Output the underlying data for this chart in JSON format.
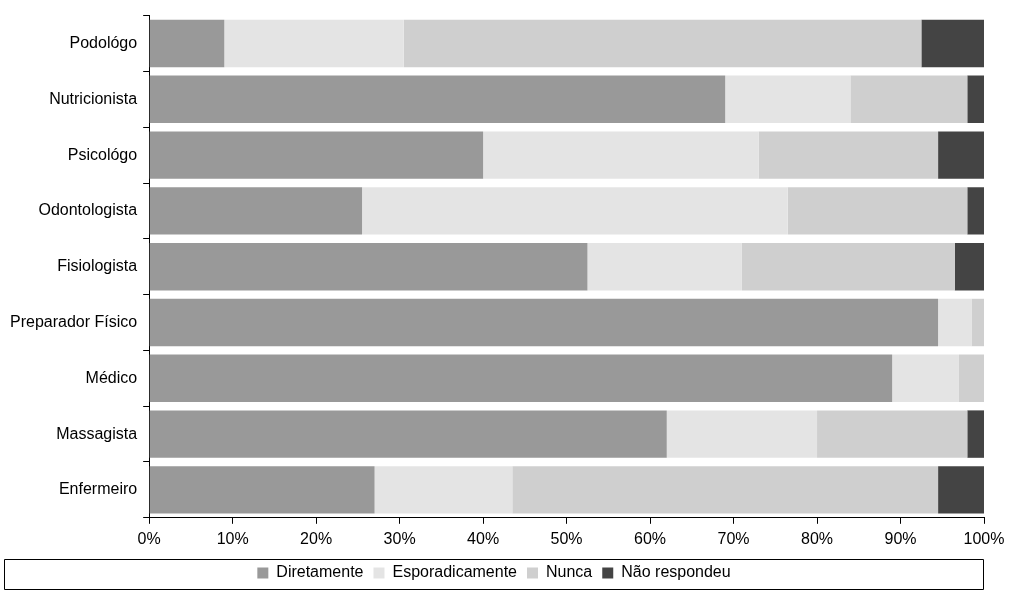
{
  "chart_data": {
    "type": "bar",
    "orientation": "horizontal",
    "stacked": true,
    "categories": [
      "Podológo",
      "Nutricionista",
      "Psicológo",
      "Odontologista",
      "Fisiologista",
      "Preparador Físico",
      "Médico",
      "Massagista",
      "Enfermeiro"
    ],
    "series": [
      {
        "name": "Diretamente",
        "color": "#999999",
        "values": [
          9,
          69,
          40,
          25.5,
          52.5,
          94.5,
          89,
          62,
          27
        ]
      },
      {
        "name": "Esporadicamente",
        "color": "#e4e4e4",
        "values": [
          21.5,
          15,
          33,
          51,
          18.5,
          4,
          8,
          18,
          16.5
        ]
      },
      {
        "name": "Nunca",
        "color": "#cfcfcf",
        "values": [
          62,
          14,
          21.5,
          21.5,
          25.5,
          1.5,
          3,
          18,
          51
        ]
      },
      {
        "name": "Não respondeu",
        "color": "#444444",
        "values": [
          7.5,
          2,
          5.5,
          2,
          3.5,
          0,
          0,
          2,
          5.5
        ]
      }
    ],
    "xlim": [
      0,
      100
    ],
    "xticks": [
      {
        "value": 0,
        "label": "0%"
      },
      {
        "value": 10,
        "label": "10%"
      },
      {
        "value": 20,
        "label": "20%"
      },
      {
        "value": 30,
        "label": "30%"
      },
      {
        "value": 40,
        "label": "40%"
      },
      {
        "value": 50,
        "label": "50%"
      },
      {
        "value": 60,
        "label": "60%"
      },
      {
        "value": 70,
        "label": "70%"
      },
      {
        "value": 80,
        "label": "80%"
      },
      {
        "value": 90,
        "label": "90%"
      },
      {
        "value": 100,
        "label": "100%"
      }
    ],
    "grid": false,
    "legend": "bottom"
  }
}
